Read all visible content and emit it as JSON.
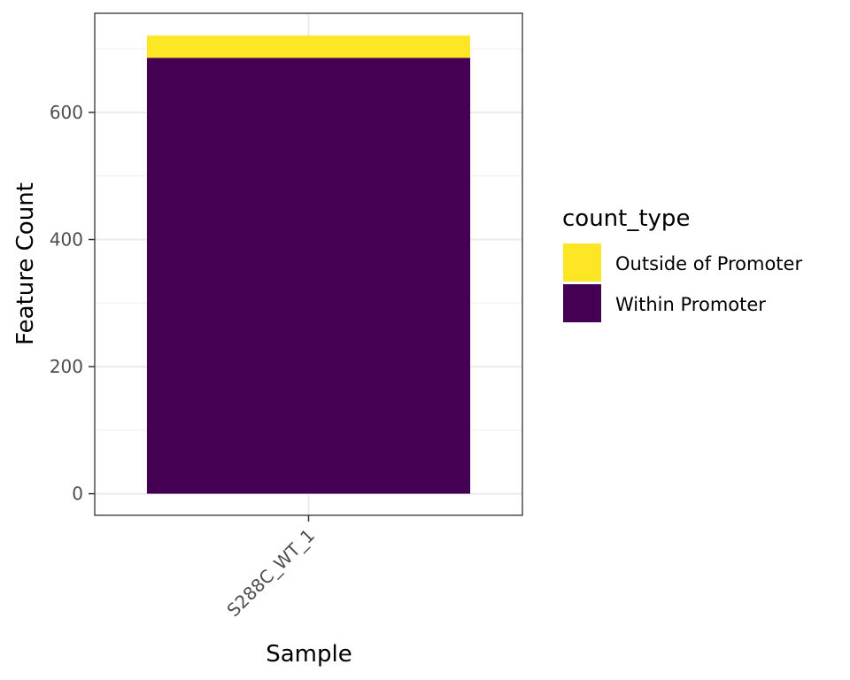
{
  "chart_data": {
    "type": "bar",
    "stacked": true,
    "categories": [
      "S288C_WT_1"
    ],
    "series": [
      {
        "name": "Within Promoter",
        "values": [
          686
        ],
        "color": "#440154"
      },
      {
        "name": "Outside of Promoter",
        "values": [
          35
        ],
        "color": "#FDE725"
      }
    ],
    "xlabel": "Sample",
    "ylabel": "Feature Count",
    "ylim": [
      -34,
      756
    ],
    "yticks": [
      0,
      200,
      400,
      600
    ],
    "grid": true,
    "legend": {
      "title": "count_type",
      "position": "right",
      "entries": [
        {
          "label": "Outside of Promoter",
          "color": "#FDE725"
        },
        {
          "label": "Within Promoter",
          "color": "#440154"
        }
      ]
    },
    "x_tick_rotation": 45
  }
}
